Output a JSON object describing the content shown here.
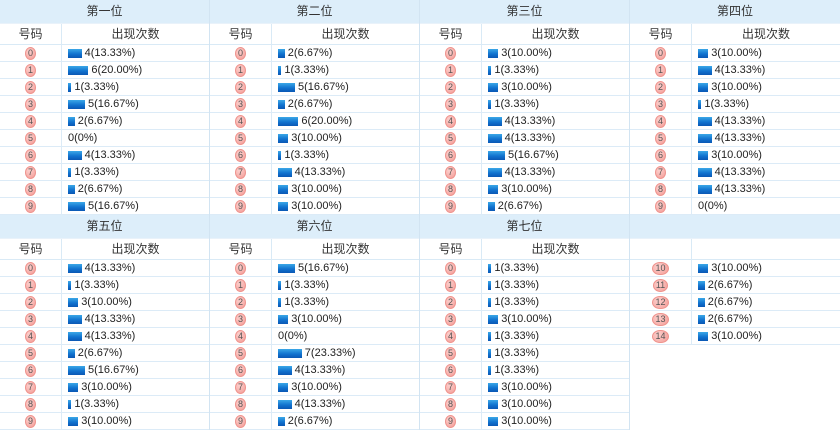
{
  "labels": {
    "number": "号码",
    "count": "出现次数"
  },
  "palette": {
    "header_bg": "#ddeefa",
    "row_border": "#dcebf7",
    "section_border": "#d2e4f2",
    "badge_bg": "#f6aca7",
    "badge_border": "#ef938d",
    "badge_text": "#555555",
    "bar_top": "#3ba7e8",
    "bar_bottom": "#0a57b4",
    "value_text": "#222222"
  },
  "sections": [
    {
      "title": "第一位",
      "rows": [
        {
          "n": "0",
          "c": 4,
          "t": "4(13.33%)"
        },
        {
          "n": "1",
          "c": 6,
          "t": "6(20.00%)"
        },
        {
          "n": "2",
          "c": 1,
          "t": "1(3.33%)"
        },
        {
          "n": "3",
          "c": 5,
          "t": "5(16.67%)"
        },
        {
          "n": "4",
          "c": 2,
          "t": "2(6.67%)"
        },
        {
          "n": "5",
          "c": 0,
          "t": "0(0%)"
        },
        {
          "n": "6",
          "c": 4,
          "t": "4(13.33%)"
        },
        {
          "n": "7",
          "c": 1,
          "t": "1(3.33%)"
        },
        {
          "n": "8",
          "c": 2,
          "t": "2(6.67%)"
        },
        {
          "n": "9",
          "c": 5,
          "t": "5(16.67%)"
        }
      ]
    },
    {
      "title": "第二位",
      "rows": [
        {
          "n": "0",
          "c": 2,
          "t": "2(6.67%)"
        },
        {
          "n": "1",
          "c": 1,
          "t": "1(3.33%)"
        },
        {
          "n": "2",
          "c": 5,
          "t": "5(16.67%)"
        },
        {
          "n": "3",
          "c": 2,
          "t": "2(6.67%)"
        },
        {
          "n": "4",
          "c": 6,
          "t": "6(20.00%)"
        },
        {
          "n": "5",
          "c": 3,
          "t": "3(10.00%)"
        },
        {
          "n": "6",
          "c": 1,
          "t": "1(3.33%)"
        },
        {
          "n": "7",
          "c": 4,
          "t": "4(13.33%)"
        },
        {
          "n": "8",
          "c": 3,
          "t": "3(10.00%)"
        },
        {
          "n": "9",
          "c": 3,
          "t": "3(10.00%)"
        }
      ]
    },
    {
      "title": "第三位",
      "rows": [
        {
          "n": "0",
          "c": 3,
          "t": "3(10.00%)"
        },
        {
          "n": "1",
          "c": 1,
          "t": "1(3.33%)"
        },
        {
          "n": "2",
          "c": 3,
          "t": "3(10.00%)"
        },
        {
          "n": "3",
          "c": 1,
          "t": "1(3.33%)"
        },
        {
          "n": "4",
          "c": 4,
          "t": "4(13.33%)"
        },
        {
          "n": "5",
          "c": 4,
          "t": "4(13.33%)"
        },
        {
          "n": "6",
          "c": 5,
          "t": "5(16.67%)"
        },
        {
          "n": "7",
          "c": 4,
          "t": "4(13.33%)"
        },
        {
          "n": "8",
          "c": 3,
          "t": "3(10.00%)"
        },
        {
          "n": "9",
          "c": 2,
          "t": "2(6.67%)"
        }
      ]
    },
    {
      "title": "第四位",
      "rows": [
        {
          "n": "0",
          "c": 3,
          "t": "3(10.00%)"
        },
        {
          "n": "1",
          "c": 4,
          "t": "4(13.33%)"
        },
        {
          "n": "2",
          "c": 3,
          "t": "3(10.00%)"
        },
        {
          "n": "3",
          "c": 1,
          "t": "1(3.33%)"
        },
        {
          "n": "4",
          "c": 4,
          "t": "4(13.33%)"
        },
        {
          "n": "5",
          "c": 4,
          "t": "4(13.33%)"
        },
        {
          "n": "6",
          "c": 3,
          "t": "3(10.00%)"
        },
        {
          "n": "7",
          "c": 4,
          "t": "4(13.33%)"
        },
        {
          "n": "8",
          "c": 4,
          "t": "4(13.33%)"
        },
        {
          "n": "9",
          "c": 0,
          "t": "0(0%)"
        }
      ]
    },
    {
      "title": "第五位",
      "rows": [
        {
          "n": "0",
          "c": 4,
          "t": "4(13.33%)"
        },
        {
          "n": "1",
          "c": 1,
          "t": "1(3.33%)"
        },
        {
          "n": "2",
          "c": 3,
          "t": "3(10.00%)"
        },
        {
          "n": "3",
          "c": 4,
          "t": "4(13.33%)"
        },
        {
          "n": "4",
          "c": 4,
          "t": "4(13.33%)"
        },
        {
          "n": "5",
          "c": 2,
          "t": "2(6.67%)"
        },
        {
          "n": "6",
          "c": 5,
          "t": "5(16.67%)"
        },
        {
          "n": "7",
          "c": 3,
          "t": "3(10.00%)"
        },
        {
          "n": "8",
          "c": 1,
          "t": "1(3.33%)"
        },
        {
          "n": "9",
          "c": 3,
          "t": "3(10.00%)"
        }
      ]
    },
    {
      "title": "第六位",
      "rows": [
        {
          "n": "0",
          "c": 5,
          "t": "5(16.67%)"
        },
        {
          "n": "1",
          "c": 1,
          "t": "1(3.33%)"
        },
        {
          "n": "2",
          "c": 1,
          "t": "1(3.33%)"
        },
        {
          "n": "3",
          "c": 3,
          "t": "3(10.00%)"
        },
        {
          "n": "4",
          "c": 0,
          "t": "0(0%)"
        },
        {
          "n": "5",
          "c": 7,
          "t": "7(23.33%)"
        },
        {
          "n": "6",
          "c": 4,
          "t": "4(13.33%)"
        },
        {
          "n": "7",
          "c": 3,
          "t": "3(10.00%)"
        },
        {
          "n": "8",
          "c": 4,
          "t": "4(13.33%)"
        },
        {
          "n": "9",
          "c": 2,
          "t": "2(6.67%)"
        }
      ]
    },
    {
      "title": "第七位",
      "rows": [
        {
          "n": "0",
          "c": 1,
          "t": "1(3.33%)"
        },
        {
          "n": "1",
          "c": 1,
          "t": "1(3.33%)"
        },
        {
          "n": "2",
          "c": 1,
          "t": "1(3.33%)"
        },
        {
          "n": "3",
          "c": 3,
          "t": "3(10.00%)"
        },
        {
          "n": "4",
          "c": 1,
          "t": "1(3.33%)"
        },
        {
          "n": "5",
          "c": 1,
          "t": "1(3.33%)"
        },
        {
          "n": "6",
          "c": 1,
          "t": "1(3.33%)"
        },
        {
          "n": "7",
          "c": 3,
          "t": "3(10.00%)"
        },
        {
          "n": "8",
          "c": 3,
          "t": "3(10.00%)"
        },
        {
          "n": "9",
          "c": 3,
          "t": "3(10.00%)"
        }
      ]
    },
    {
      "title": "",
      "cont": true,
      "rows": [
        {
          "n": "10",
          "c": 3,
          "t": "3(10.00%)"
        },
        {
          "n": "11",
          "c": 2,
          "t": "2(6.67%)"
        },
        {
          "n": "12",
          "c": 2,
          "t": "2(6.67%)"
        },
        {
          "n": "13",
          "c": 2,
          "t": "2(6.67%)"
        },
        {
          "n": "14",
          "c": 3,
          "t": "3(10.00%)"
        }
      ]
    }
  ],
  "chart_data": [
    {
      "type": "bar",
      "title": "第一位",
      "xlabel": "号码",
      "ylabel": "出现次数",
      "categories": [
        "0",
        "1",
        "2",
        "3",
        "4",
        "5",
        "6",
        "7",
        "8",
        "9"
      ],
      "values": [
        4,
        6,
        1,
        5,
        2,
        0,
        4,
        1,
        2,
        5
      ],
      "value_labels": [
        "4(13.33%)",
        "6(20.00%)",
        "1(3.33%)",
        "5(16.67%)",
        "2(6.67%)",
        "0(0%)",
        "4(13.33%)",
        "1(3.33%)",
        "2(6.67%)",
        "5(16.67%)"
      ]
    },
    {
      "type": "bar",
      "title": "第二位",
      "xlabel": "号码",
      "ylabel": "出现次数",
      "categories": [
        "0",
        "1",
        "2",
        "3",
        "4",
        "5",
        "6",
        "7",
        "8",
        "9"
      ],
      "values": [
        2,
        1,
        5,
        2,
        6,
        3,
        1,
        4,
        3,
        3
      ],
      "value_labels": [
        "2(6.67%)",
        "1(3.33%)",
        "5(16.67%)",
        "2(6.67%)",
        "6(20.00%)",
        "3(10.00%)",
        "1(3.33%)",
        "4(13.33%)",
        "3(10.00%)",
        "3(10.00%)"
      ]
    },
    {
      "type": "bar",
      "title": "第三位",
      "xlabel": "号码",
      "ylabel": "出现次数",
      "categories": [
        "0",
        "1",
        "2",
        "3",
        "4",
        "5",
        "6",
        "7",
        "8",
        "9"
      ],
      "values": [
        3,
        1,
        3,
        1,
        4,
        4,
        5,
        4,
        3,
        2
      ],
      "value_labels": [
        "3(10.00%)",
        "1(3.33%)",
        "3(10.00%)",
        "1(3.33%)",
        "4(13.33%)",
        "4(13.33%)",
        "5(16.67%)",
        "4(13.33%)",
        "3(10.00%)",
        "2(6.67%)"
      ]
    },
    {
      "type": "bar",
      "title": "第四位",
      "xlabel": "号码",
      "ylabel": "出现次数",
      "categories": [
        "0",
        "1",
        "2",
        "3",
        "4",
        "5",
        "6",
        "7",
        "8",
        "9"
      ],
      "values": [
        3,
        4,
        3,
        1,
        4,
        4,
        3,
        4,
        4,
        0
      ],
      "value_labels": [
        "3(10.00%)",
        "4(13.33%)",
        "3(10.00%)",
        "1(3.33%)",
        "4(13.33%)",
        "4(13.33%)",
        "3(10.00%)",
        "4(13.33%)",
        "4(13.33%)",
        "0(0%)"
      ]
    },
    {
      "type": "bar",
      "title": "第五位",
      "xlabel": "号码",
      "ylabel": "出现次数",
      "categories": [
        "0",
        "1",
        "2",
        "3",
        "4",
        "5",
        "6",
        "7",
        "8",
        "9"
      ],
      "values": [
        4,
        1,
        3,
        4,
        4,
        2,
        5,
        3,
        1,
        3
      ],
      "value_labels": [
        "4(13.33%)",
        "1(3.33%)",
        "3(10.00%)",
        "4(13.33%)",
        "4(13.33%)",
        "2(6.67%)",
        "5(16.67%)",
        "3(10.00%)",
        "1(3.33%)",
        "3(10.00%)"
      ]
    },
    {
      "type": "bar",
      "title": "第六位",
      "xlabel": "号码",
      "ylabel": "出现次数",
      "categories": [
        "0",
        "1",
        "2",
        "3",
        "4",
        "5",
        "6",
        "7",
        "8",
        "9"
      ],
      "values": [
        5,
        1,
        1,
        3,
        0,
        7,
        4,
        3,
        4,
        2
      ],
      "value_labels": [
        "5(16.67%)",
        "1(3.33%)",
        "1(3.33%)",
        "3(10.00%)",
        "0(0%)",
        "7(23.33%)",
        "4(13.33%)",
        "3(10.00%)",
        "4(13.33%)",
        "2(6.67%)"
      ]
    },
    {
      "type": "bar",
      "title": "第七位",
      "xlabel": "号码",
      "ylabel": "出现次数",
      "categories": [
        "0",
        "1",
        "2",
        "3",
        "4",
        "5",
        "6",
        "7",
        "8",
        "9",
        "10",
        "11",
        "12",
        "13",
        "14"
      ],
      "values": [
        1,
        1,
        1,
        3,
        1,
        1,
        1,
        3,
        3,
        3,
        3,
        2,
        2,
        2,
        3
      ],
      "value_labels": [
        "1(3.33%)",
        "1(3.33%)",
        "1(3.33%)",
        "3(10.00%)",
        "1(3.33%)",
        "1(3.33%)",
        "1(3.33%)",
        "3(10.00%)",
        "3(10.00%)",
        "3(10.00%)",
        "3(10.00%)",
        "2(6.67%)",
        "2(6.67%)",
        "2(6.67%)",
        "3(10.00%)"
      ]
    }
  ]
}
